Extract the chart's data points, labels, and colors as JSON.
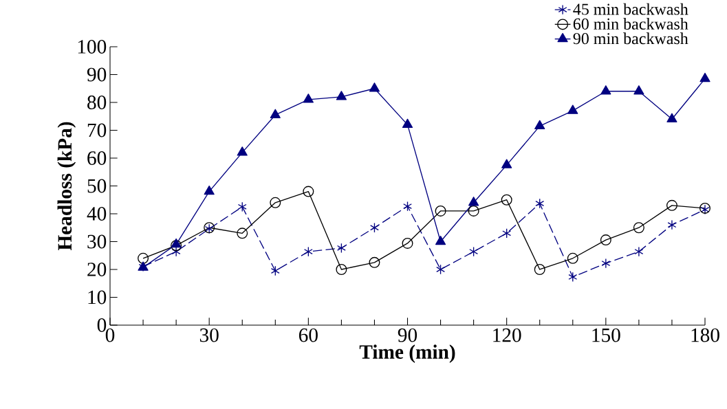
{
  "chart_data": {
    "type": "line",
    "xlabel": "Time (min)",
    "ylabel": "Headloss (kPa)",
    "x": [
      10,
      20,
      30,
      40,
      50,
      60,
      70,
      80,
      90,
      100,
      110,
      120,
      130,
      140,
      150,
      160,
      170,
      180
    ],
    "series": [
      {
        "name": "45 min backwash",
        "color": "#000080",
        "marker": "cross",
        "line_style": "dashed",
        "values": [
          21,
          26.4,
          34.6,
          42.5,
          19.5,
          26.4,
          27.7,
          35,
          42.7,
          20,
          26.4,
          33,
          43.7,
          17.3,
          22.2,
          26.4,
          36,
          41.5
        ]
      },
      {
        "name": "60 min backwash",
        "color": "#000000",
        "marker": "circle",
        "line_style": "solid",
        "values": [
          24,
          28.6,
          35,
          33,
          44,
          48,
          20,
          22.5,
          29.4,
          41,
          41,
          45,
          20,
          24,
          30.6,
          35,
          43,
          42
        ]
      },
      {
        "name": "90 min backwash",
        "color": "#000080",
        "marker": "triangle",
        "line_style": "solid",
        "values": [
          20.7,
          29,
          48,
          62,
          75.5,
          81,
          82,
          85,
          72,
          30,
          44,
          57.5,
          71.5,
          77,
          84,
          84,
          74,
          88.5
        ]
      }
    ],
    "xlim": [
      0,
      180
    ],
    "ylim": [
      0,
      100
    ],
    "xticks": [
      0,
      30,
      60,
      90,
      120,
      150,
      180
    ],
    "yticks": [
      0,
      10,
      20,
      30,
      40,
      50,
      60,
      70,
      80,
      90,
      100
    ],
    "grid": false,
    "legend": "top right"
  }
}
